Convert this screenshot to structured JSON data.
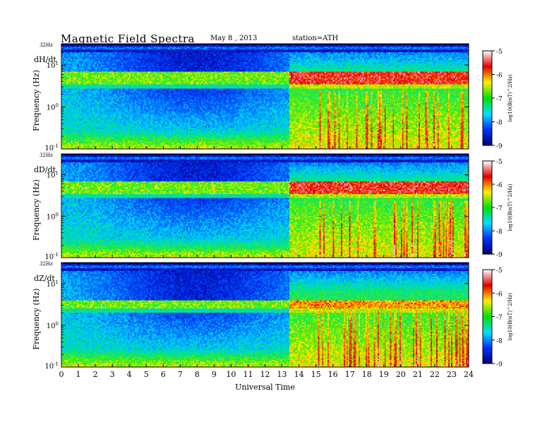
{
  "header": {
    "title": "Magnetic Field Spectra",
    "date": "May 8 , 2013",
    "station": "station=ATH"
  },
  "chart_data": [
    {
      "type": "heatmap",
      "panel_label": "dH/dt",
      "ylabel": "Frequency (Hz)",
      "top_label": "32Hz",
      "y_scale": "log",
      "ylim": [
        0.1,
        32
      ],
      "y_ticks": [
        {
          "value": 10,
          "base": "10",
          "exp": "1"
        },
        {
          "value": 1,
          "base": "10",
          "exp": "0"
        },
        {
          "value": 0.1,
          "base": "10",
          "exp": "-1"
        }
      ],
      "xlim": [
        0,
        24
      ],
      "colorbar": {
        "label": "log10(B(nT)^2/Hz)",
        "range": [
          -9,
          -5
        ],
        "ticks": [
          "-5",
          "-6",
          "-7",
          "-8",
          "-9"
        ],
        "palette": [
          "#ffffff",
          "#e00000",
          "#ffee00",
          "#00e000",
          "#00e0ff",
          "#0030ff",
          "#000070"
        ]
      },
      "features": {
        "onset_hour": 13.4,
        "band_hz": [
          3.5,
          7
        ],
        "band_after_onset": "red-white, saturated near -5"
      }
    },
    {
      "type": "heatmap",
      "panel_label": "dD/dt",
      "ylabel": "Frequency (Hz)",
      "top_label": "32Hz",
      "y_scale": "log",
      "ylim": [
        0.1,
        32
      ],
      "y_ticks": [
        {
          "value": 10,
          "base": "10",
          "exp": "1"
        },
        {
          "value": 1,
          "base": "10",
          "exp": "0"
        },
        {
          "value": 0.1,
          "base": "10",
          "exp": "-1"
        }
      ],
      "xlim": [
        0,
        24
      ],
      "colorbar": {
        "label": "log10(B(nT)^2/Hz)",
        "range": [
          -9,
          -5
        ],
        "ticks": [
          "-5",
          "-6",
          "-7",
          "-8",
          "-9"
        ],
        "palette": [
          "#ffffff",
          "#e00000",
          "#ffee00",
          "#00e000",
          "#00e0ff",
          "#0030ff",
          "#000070"
        ]
      },
      "features": {
        "onset_hour": 13.4,
        "band_hz": [
          3.5,
          7
        ],
        "band_after_onset": "red-white, saturated near -5"
      }
    },
    {
      "type": "heatmap",
      "panel_label": "dZ/dt",
      "ylabel": "Frequency (Hz)",
      "top_label": "32Hz",
      "y_scale": "log",
      "ylim": [
        0.1,
        32
      ],
      "y_ticks": [
        {
          "value": 10,
          "base": "10",
          "exp": "1"
        },
        {
          "value": 1,
          "base": "10",
          "exp": "0"
        },
        {
          "value": 0.1,
          "base": "10",
          "exp": "-1"
        }
      ],
      "xlim": [
        0,
        24
      ],
      "colorbar": {
        "label": "log10(B(nT)^2/Hz)",
        "range": [
          -9,
          -5
        ],
        "ticks": [
          "-5",
          "-6",
          "-7",
          "-8",
          "-9"
        ],
        "palette": [
          "#ffffff",
          "#e00000",
          "#ffee00",
          "#00e000",
          "#00e0ff",
          "#0030ff",
          "#000070"
        ]
      },
      "features": {
        "onset_hour": 13.4,
        "band_hz": [
          2.5,
          4
        ],
        "band_after_onset": "red-yellow"
      }
    }
  ],
  "x_axis": {
    "label": "Universal Time",
    "ticks": [
      "0",
      "1",
      "2",
      "3",
      "4",
      "5",
      "6",
      "7",
      "8",
      "9",
      "10",
      "11",
      "12",
      "13",
      "14",
      "15",
      "16",
      "17",
      "18",
      "19",
      "20",
      "21",
      "22",
      "23",
      "24"
    ]
  }
}
